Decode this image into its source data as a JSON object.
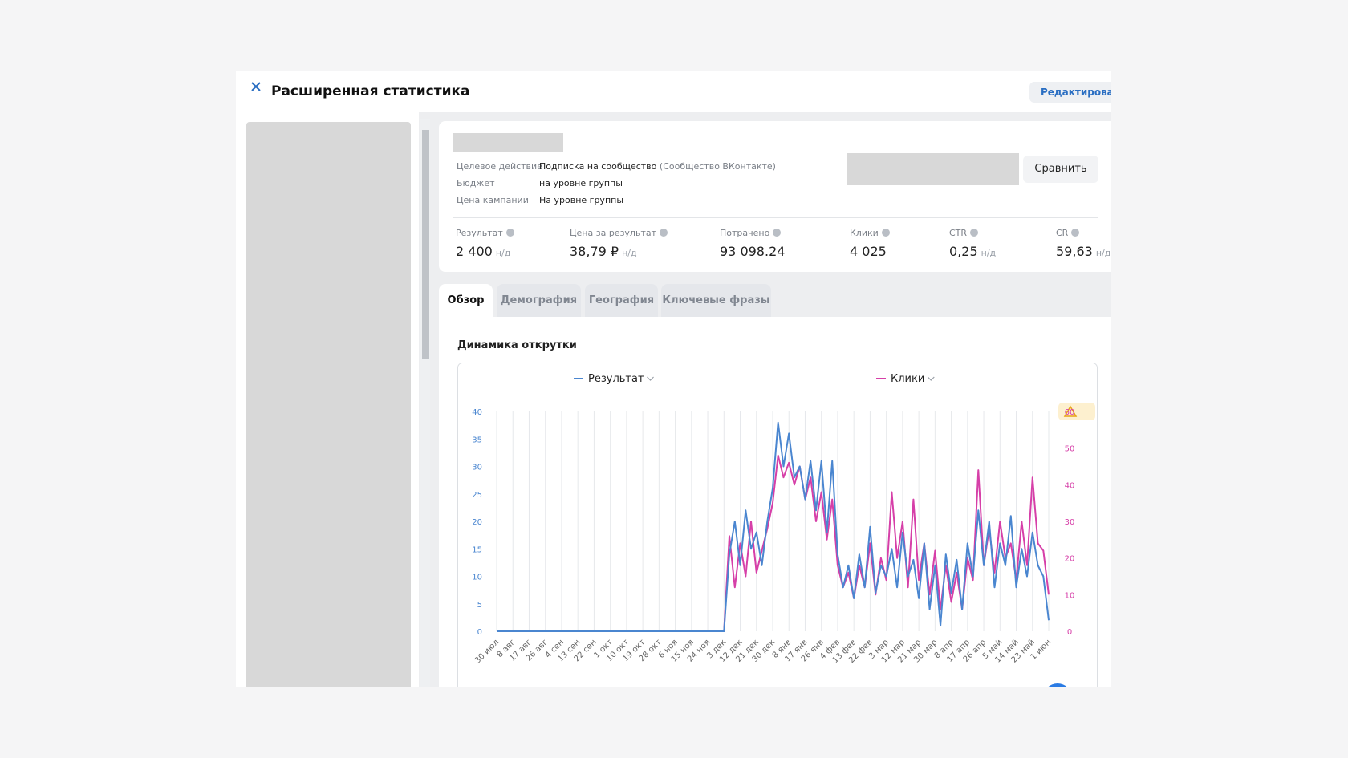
{
  "header": {
    "title": "Расширенная статистика",
    "edit_button": "Редактировать"
  },
  "campaign": {
    "rows": [
      {
        "label": "Целевое действие",
        "value": "Подписка на сообщество",
        "note": "(Сообщество ВКонтакте)"
      },
      {
        "label": "Бюджет",
        "value": "на уровне группы"
      },
      {
        "label": "Цена кампании",
        "value": "На уровне группы"
      }
    ],
    "compare_button": "Сравнить"
  },
  "metrics": [
    {
      "label": "Результат",
      "value": "2 400",
      "suffix": "н/д"
    },
    {
      "label": "Цена за результат",
      "value": "38,79 ₽",
      "suffix": "н/д"
    },
    {
      "label": "Потрачено",
      "value": "93 098.24"
    },
    {
      "label": "Клики",
      "value": "4 025"
    },
    {
      "label": "CTR",
      "value": "0,25",
      "suffix": "н/д"
    },
    {
      "label": "CR",
      "value": "59,63",
      "suffix": "н/д"
    }
  ],
  "tabs": [
    "Обзор",
    "Демография",
    "География",
    "Ключевые фразы"
  ],
  "chart_data": {
    "type": "line",
    "title": "Динамика открутки",
    "categories": [
      "30 июл",
      null,
      null,
      "8 авг",
      null,
      null,
      "17 авг",
      null,
      null,
      "26 авг",
      null,
      null,
      "4 сен",
      null,
      null,
      "13 сен",
      null,
      null,
      "22 сен",
      null,
      null,
      "1 окт",
      null,
      null,
      "10 окт",
      null,
      null,
      "19 окт",
      null,
      null,
      "28 окт",
      null,
      null,
      "6 ноя",
      null,
      null,
      "15 ноя",
      null,
      null,
      "24 ноя",
      null,
      null,
      "3 дек",
      null,
      null,
      "12 дек",
      null,
      null,
      "21 дек",
      null,
      null,
      "30 дек",
      null,
      null,
      "8 янв",
      null,
      null,
      "17 янв",
      null,
      null,
      "26 янв",
      null,
      null,
      "4 фев",
      null,
      null,
      "13 фев",
      null,
      null,
      "22 фев",
      null,
      null,
      "3 мар",
      null,
      null,
      "12 мар",
      null,
      null,
      "21 мар",
      null,
      null,
      "30 мар",
      null,
      null,
      "8 апр",
      null,
      null,
      "17 апр",
      null,
      null,
      "26 апр",
      null,
      null,
      "5 май",
      null,
      null,
      "14 май",
      null,
      null,
      "23 май",
      null,
      null,
      "1 июн"
    ],
    "series": [
      {
        "name": "Результат",
        "color": "#4a86d0",
        "values": [
          0,
          0,
          0,
          0,
          0,
          0,
          0,
          0,
          0,
          0,
          0,
          0,
          0,
          0,
          0,
          0,
          0,
          0,
          0,
          0,
          0,
          0,
          0,
          0,
          0,
          0,
          0,
          0,
          0,
          0,
          0,
          0,
          0,
          0,
          0,
          0,
          0,
          0,
          0,
          0,
          0,
          0,
          0,
          14,
          20,
          12,
          22,
          15,
          18,
          12,
          20,
          26,
          38,
          30,
          36,
          28,
          30,
          24,
          31,
          22,
          31,
          18,
          31,
          14,
          8,
          12,
          6,
          14,
          8,
          19,
          7,
          12,
          10,
          15,
          8,
          18,
          10,
          13,
          6,
          16,
          4,
          12,
          1,
          14,
          7,
          13,
          4,
          16,
          10,
          22,
          12,
          20,
          8,
          16,
          12,
          21,
          8,
          15,
          10,
          18,
          12,
          10,
          2
        ]
      },
      {
        "name": "Клики",
        "color": "#d63fa8",
        "axis": "y2",
        "values": [
          0,
          0,
          0,
          0,
          0,
          0,
          0,
          0,
          0,
          0,
          0,
          0,
          0,
          0,
          0,
          0,
          0,
          0,
          0,
          0,
          0,
          0,
          0,
          0,
          0,
          0,
          0,
          0,
          0,
          0,
          0,
          0,
          0,
          0,
          0,
          0,
          0,
          0,
          0,
          0,
          0,
          0,
          0,
          26,
          12,
          24,
          15,
          30,
          16,
          22,
          28,
          35,
          48,
          42,
          46,
          40,
          45,
          36,
          42,
          30,
          38,
          25,
          36,
          18,
          12,
          16,
          9,
          18,
          12,
          24,
          10,
          20,
          14,
          38,
          20,
          30,
          12,
          36,
          14,
          24,
          10,
          22,
          6,
          18,
          8,
          16,
          6,
          20,
          14,
          44,
          18,
          28,
          16,
          30,
          20,
          24,
          14,
          30,
          18,
          42,
          24,
          22,
          10
        ]
      }
    ],
    "ylim": [
      0,
      40
    ],
    "yticks": [
      0,
      5,
      10,
      15,
      20,
      25,
      30,
      35,
      40
    ],
    "y2lim": [
      0,
      60
    ],
    "y2ticks": [
      0,
      10,
      20,
      30,
      40,
      50,
      60
    ],
    "grid": true
  }
}
